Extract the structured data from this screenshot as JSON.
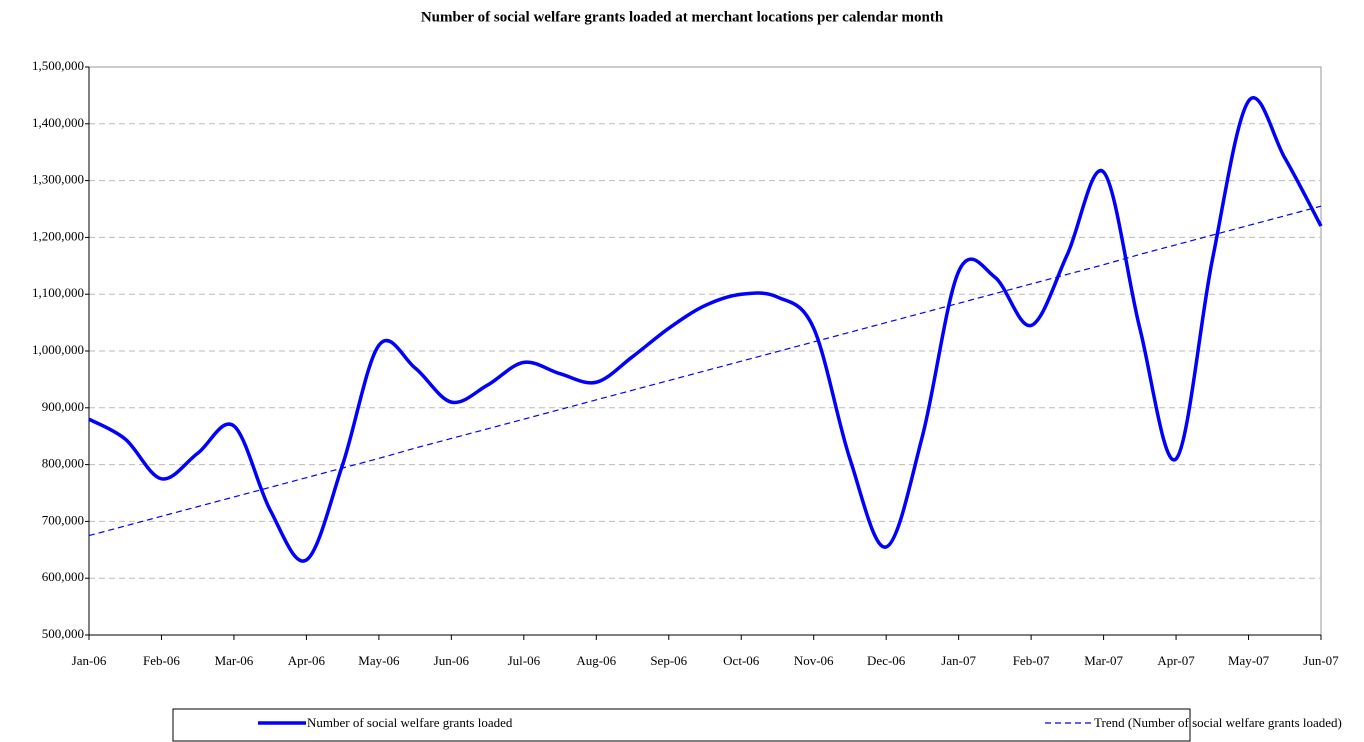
{
  "chart_data": {
    "type": "line",
    "title": "Number of social welfare grants loaded at merchant locations per calendar month",
    "categories": [
      "Jan-06",
      null,
      "Feb-06",
      null,
      "Mar-06",
      null,
      "Apr-06",
      null,
      "May-06",
      null,
      "Jun-06",
      null,
      "Jul-06",
      null,
      "Aug-06",
      null,
      "Sep-06",
      null,
      "Oct-06",
      null,
      "Nov-06",
      null,
      "Dec-06",
      null,
      "Jan-07",
      null,
      "Feb-07",
      null,
      "Mar-07",
      null,
      "Apr-07",
      null,
      "May-07",
      null,
      "Jun-07"
    ],
    "series": [
      {
        "name": "Number of social welfare grants loaded",
        "color": "#0000ff",
        "style": "solid",
        "values": [
          880000,
          845000,
          775000,
          820000,
          868000,
          720000,
          632000,
          800000,
          1010000,
          970000,
          910000,
          940000,
          980000,
          960000,
          945000,
          990000,
          1040000,
          1080000,
          1100000,
          1095000,
          1040000,
          810000,
          655000,
          850000,
          1140000,
          1130000,
          1045000,
          1170000,
          1315000,
          1040000,
          810000,
          1160000,
          1440000,
          1340000,
          1220000
        ]
      },
      {
        "name": "Trend (Number of social welfare grants loaded)",
        "color": "#0000ff",
        "style": "dashed",
        "values": [
          675000,
          692000,
          709000,
          726000,
          743000,
          760000,
          777000,
          794000,
          811000,
          829000,
          846000,
          863000,
          880000,
          897000,
          914000,
          931000,
          948000,
          965000,
          982000,
          999000,
          1016000,
          1033000,
          1050000,
          1067000,
          1084000,
          1101000,
          1118000,
          1135000,
          1152000,
          1170000,
          1187000,
          1204000,
          1221000,
          1238000,
          1255000
        ]
      }
    ],
    "ylim": [
      500000,
      1500000
    ],
    "yticks": [
      {
        "value": 500000,
        "label": "500,000"
      },
      {
        "value": 600000,
        "label": "600,000"
      },
      {
        "value": 700000,
        "label": "700,000"
      },
      {
        "value": 800000,
        "label": "800,000"
      },
      {
        "value": 900000,
        "label": "900,000"
      },
      {
        "value": 1000000,
        "label": "1,000,000"
      },
      {
        "value": 1100000,
        "label": "1,100,000"
      },
      {
        "value": 1200000,
        "label": "1,200,000"
      },
      {
        "value": 1300000,
        "label": "1,300,000"
      },
      {
        "value": 1400000,
        "label": "1,400,000"
      },
      {
        "value": 1500000,
        "label": "1,500,000"
      }
    ],
    "grid": true,
    "legend": "bottom"
  }
}
